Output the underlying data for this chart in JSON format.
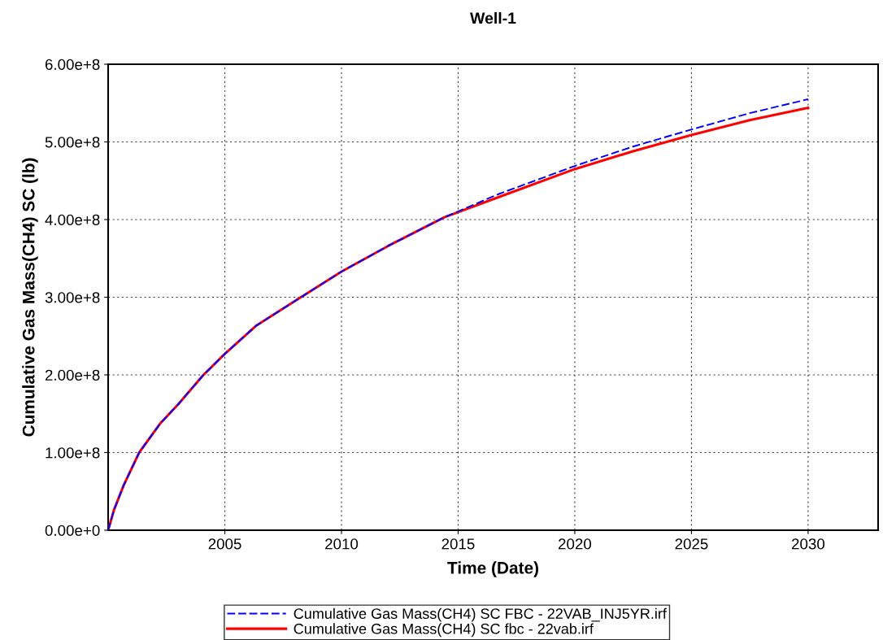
{
  "chart_data": {
    "type": "line",
    "title": "Well-1",
    "xlabel": "Time (Date)",
    "ylabel": "Cumulative Gas Mass(CH4) SC (lb)",
    "x": [
      "2000-01",
      "2000-04",
      "2000-09",
      "2001-05",
      "2002-04",
      "2003-01",
      "2004-02",
      "2005-01",
      "2006-05",
      "2008-01",
      "2010-01",
      "2012-01",
      "2014-06",
      "2016-10",
      "2020-01",
      "2022-07",
      "2025-01",
      "2027-07",
      "2030-01"
    ],
    "series": [
      {
        "name": "Cumulative Gas Mass(CH4) SC FBC - 22VAB_INJ5YR.irf",
        "color": "#0000ff",
        "line_style": "dashed",
        "values": [
          0,
          26000000,
          58000000,
          100000000,
          138000000,
          162000000,
          200000000,
          227000000,
          263000000,
          295000000,
          333000000,
          366000000,
          403000000,
          433000000,
          469000000,
          494000000,
          516000000,
          537000000,
          555000000
        ]
      },
      {
        "name": "Cumulative Gas Mass(CH4) SC fbc - 22vab.irf",
        "color": "#ff0000",
        "line_style": "solid",
        "values": [
          0,
          26000000,
          58000000,
          100000000,
          138000000,
          162000000,
          200000000,
          227000000,
          263000000,
          295000000,
          333000000,
          366000000,
          403000000,
          429000000,
          465000000,
          488000000,
          509000000,
          528000000,
          544000000
        ]
      }
    ],
    "xlim": [
      "2000-01-01",
      "2033-01-01"
    ],
    "xticks": [
      {
        "value": "2005-01-01",
        "label": "2005"
      },
      {
        "value": "2010-01-01",
        "label": "2010"
      },
      {
        "value": "2015-01-01",
        "label": "2015"
      },
      {
        "value": "2020-01-01",
        "label": "2020"
      },
      {
        "value": "2025-01-01",
        "label": "2025"
      },
      {
        "value": "2030-01-01",
        "label": "2030"
      }
    ],
    "ylim": [
      0,
      600000000
    ],
    "yticks": [
      {
        "value": 0,
        "label": "0.00e+0"
      },
      {
        "value": 100000000,
        "label": "1.00e+8"
      },
      {
        "value": 200000000,
        "label": "2.00e+8"
      },
      {
        "value": 300000000,
        "label": "3.00e+8"
      },
      {
        "value": 400000000,
        "label": "4.00e+8"
      },
      {
        "value": 500000000,
        "label": "5.00e+8"
      },
      {
        "value": 600000000,
        "label": "6.00e+8"
      }
    ],
    "grid": true,
    "legend": "bottom",
    "marker": "none"
  }
}
